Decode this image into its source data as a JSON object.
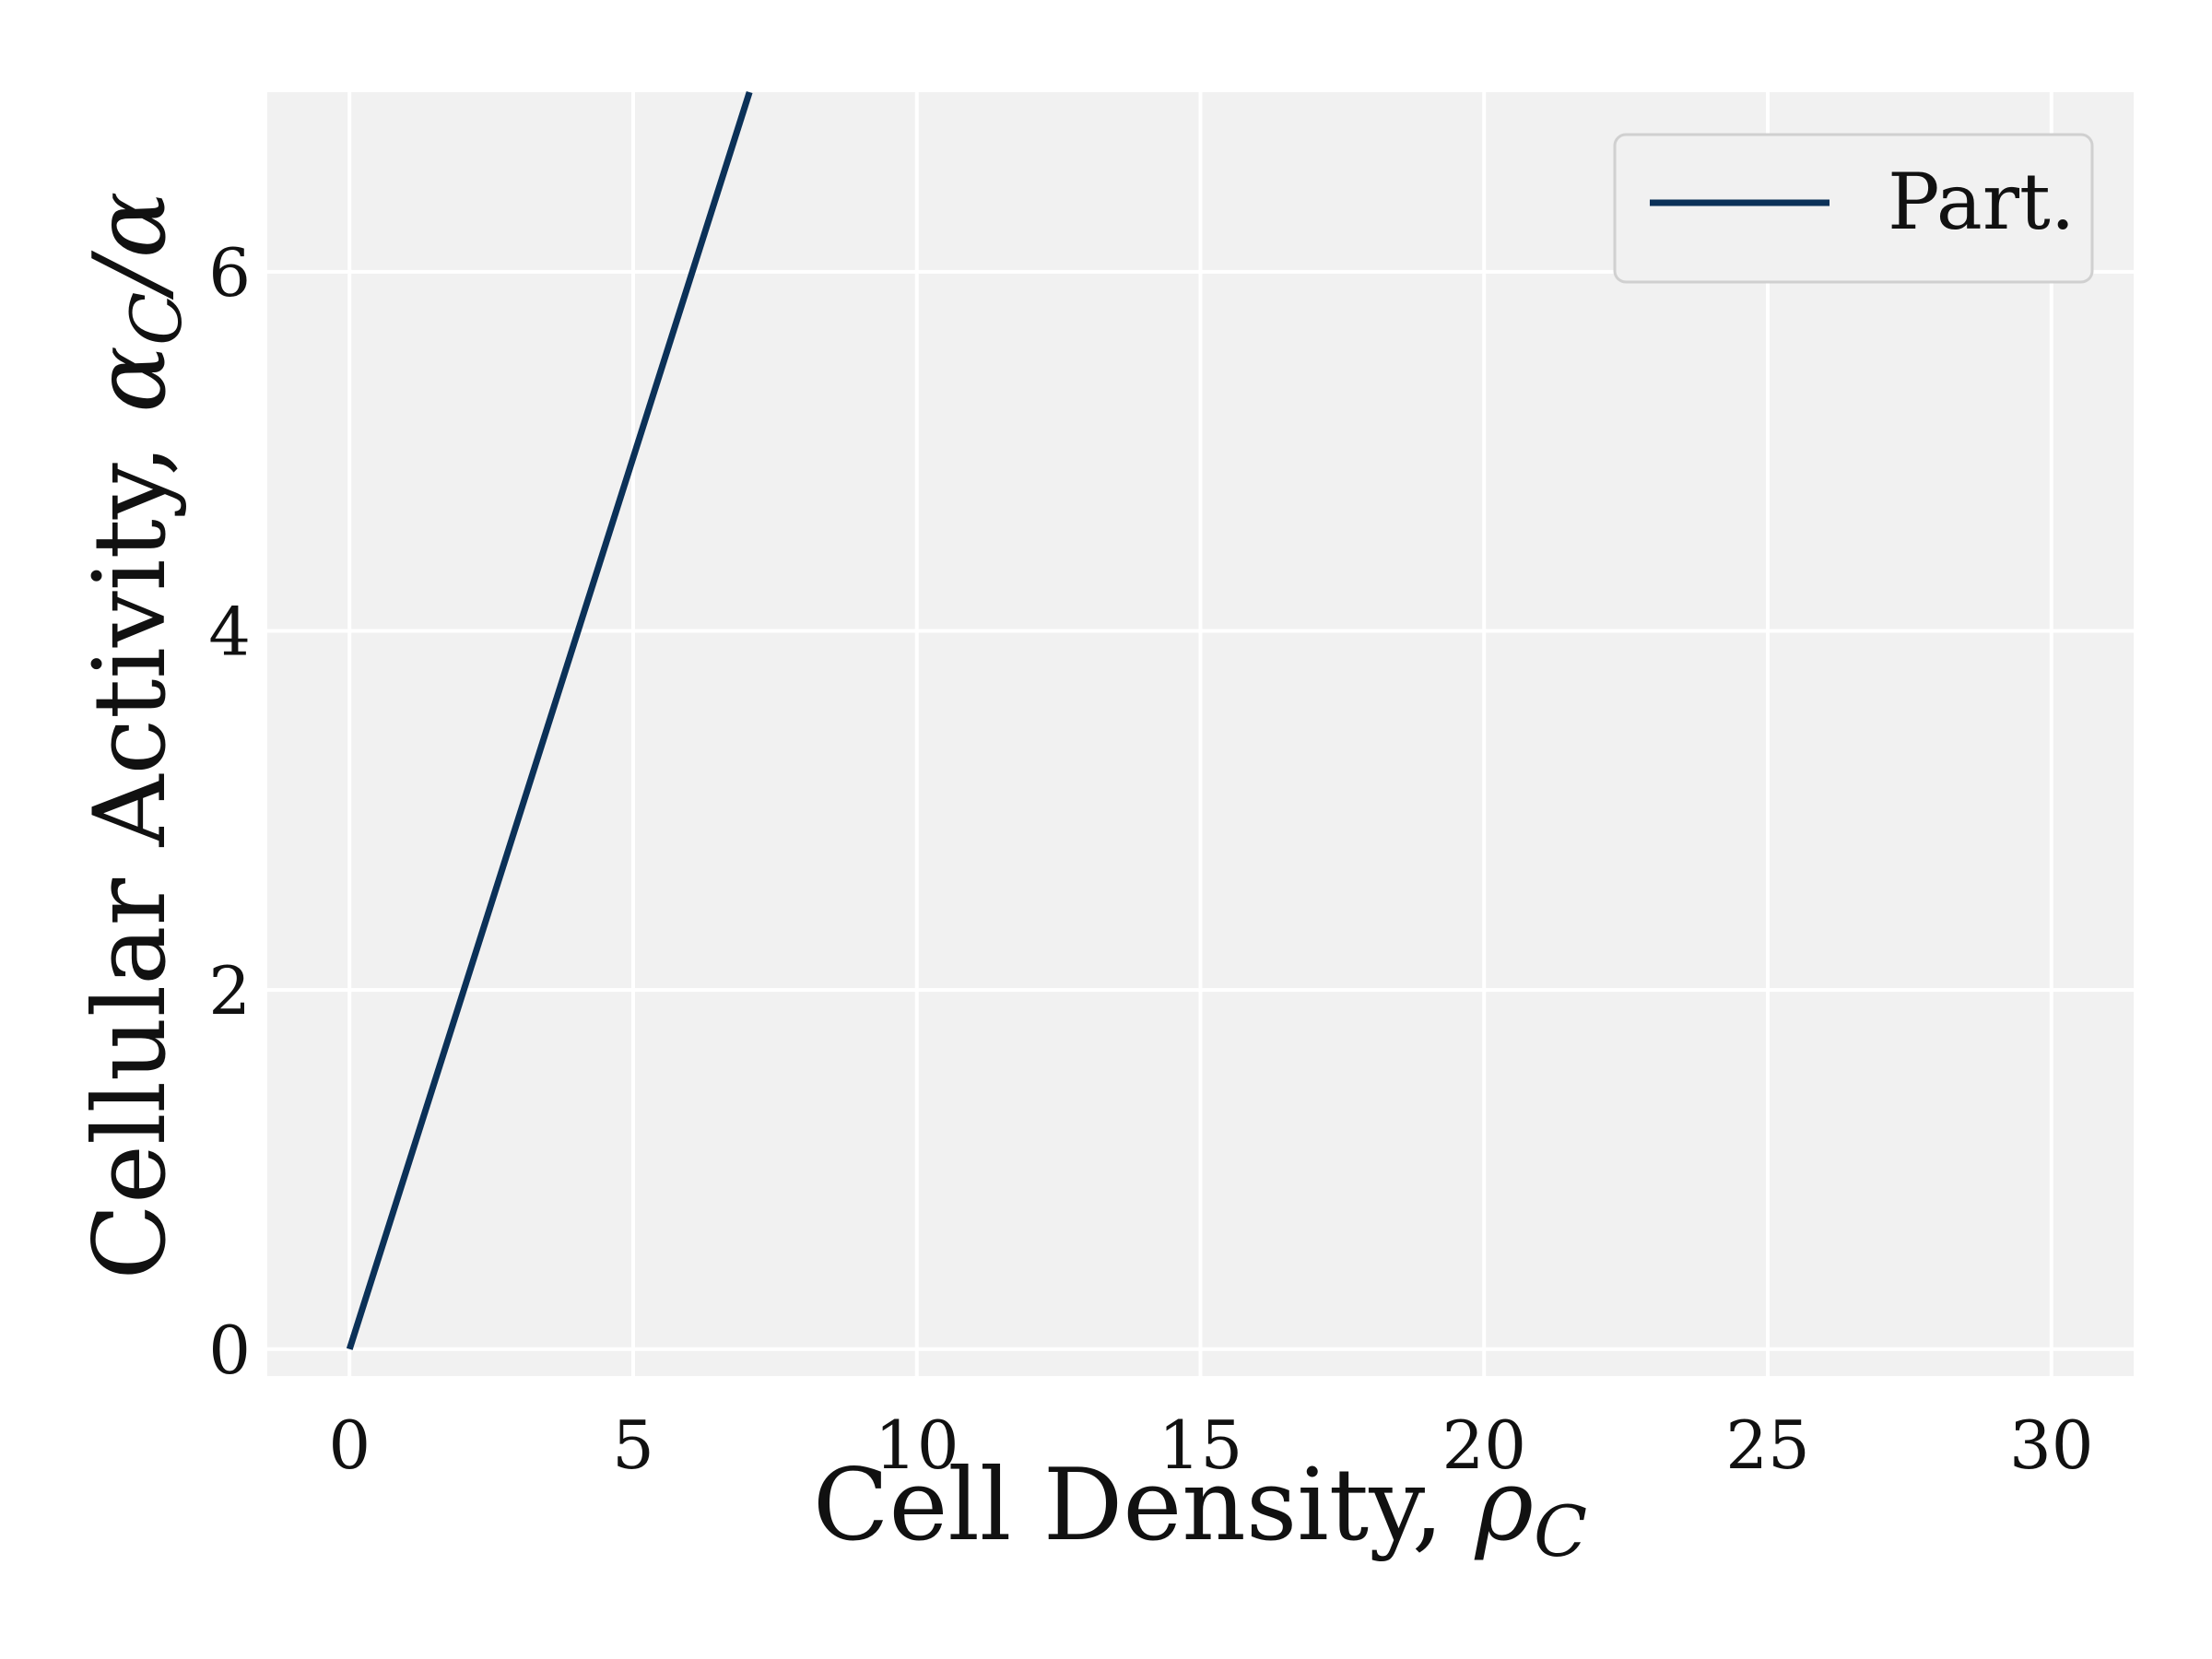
{
  "chart_data": {
    "type": "line",
    "title": "",
    "xlabel": {
      "text": "Cell Density, ",
      "symbol": "ρ",
      "subscript": "C"
    },
    "ylabel": {
      "text": "Cellular Activity, ",
      "symbol": "α",
      "subscript": "C",
      "tail": "/α"
    },
    "xlim": [
      -1.45,
      31.45
    ],
    "ylim": [
      -0.15,
      7.0
    ],
    "xticks": [
      0,
      5,
      10,
      15,
      20,
      25,
      30
    ],
    "yticks": [
      0,
      2,
      4,
      6
    ],
    "grid": true,
    "legend": {
      "position": "top-right"
    },
    "series": [
      {
        "name": "Part.",
        "color": "#0b3158",
        "x": [
          0,
          7.05
        ],
        "y": [
          0,
          7.0
        ]
      }
    ]
  },
  "colors": {
    "plot_background": "#f1f1f1",
    "grid": "#ffffff",
    "line": "#0b3158"
  }
}
